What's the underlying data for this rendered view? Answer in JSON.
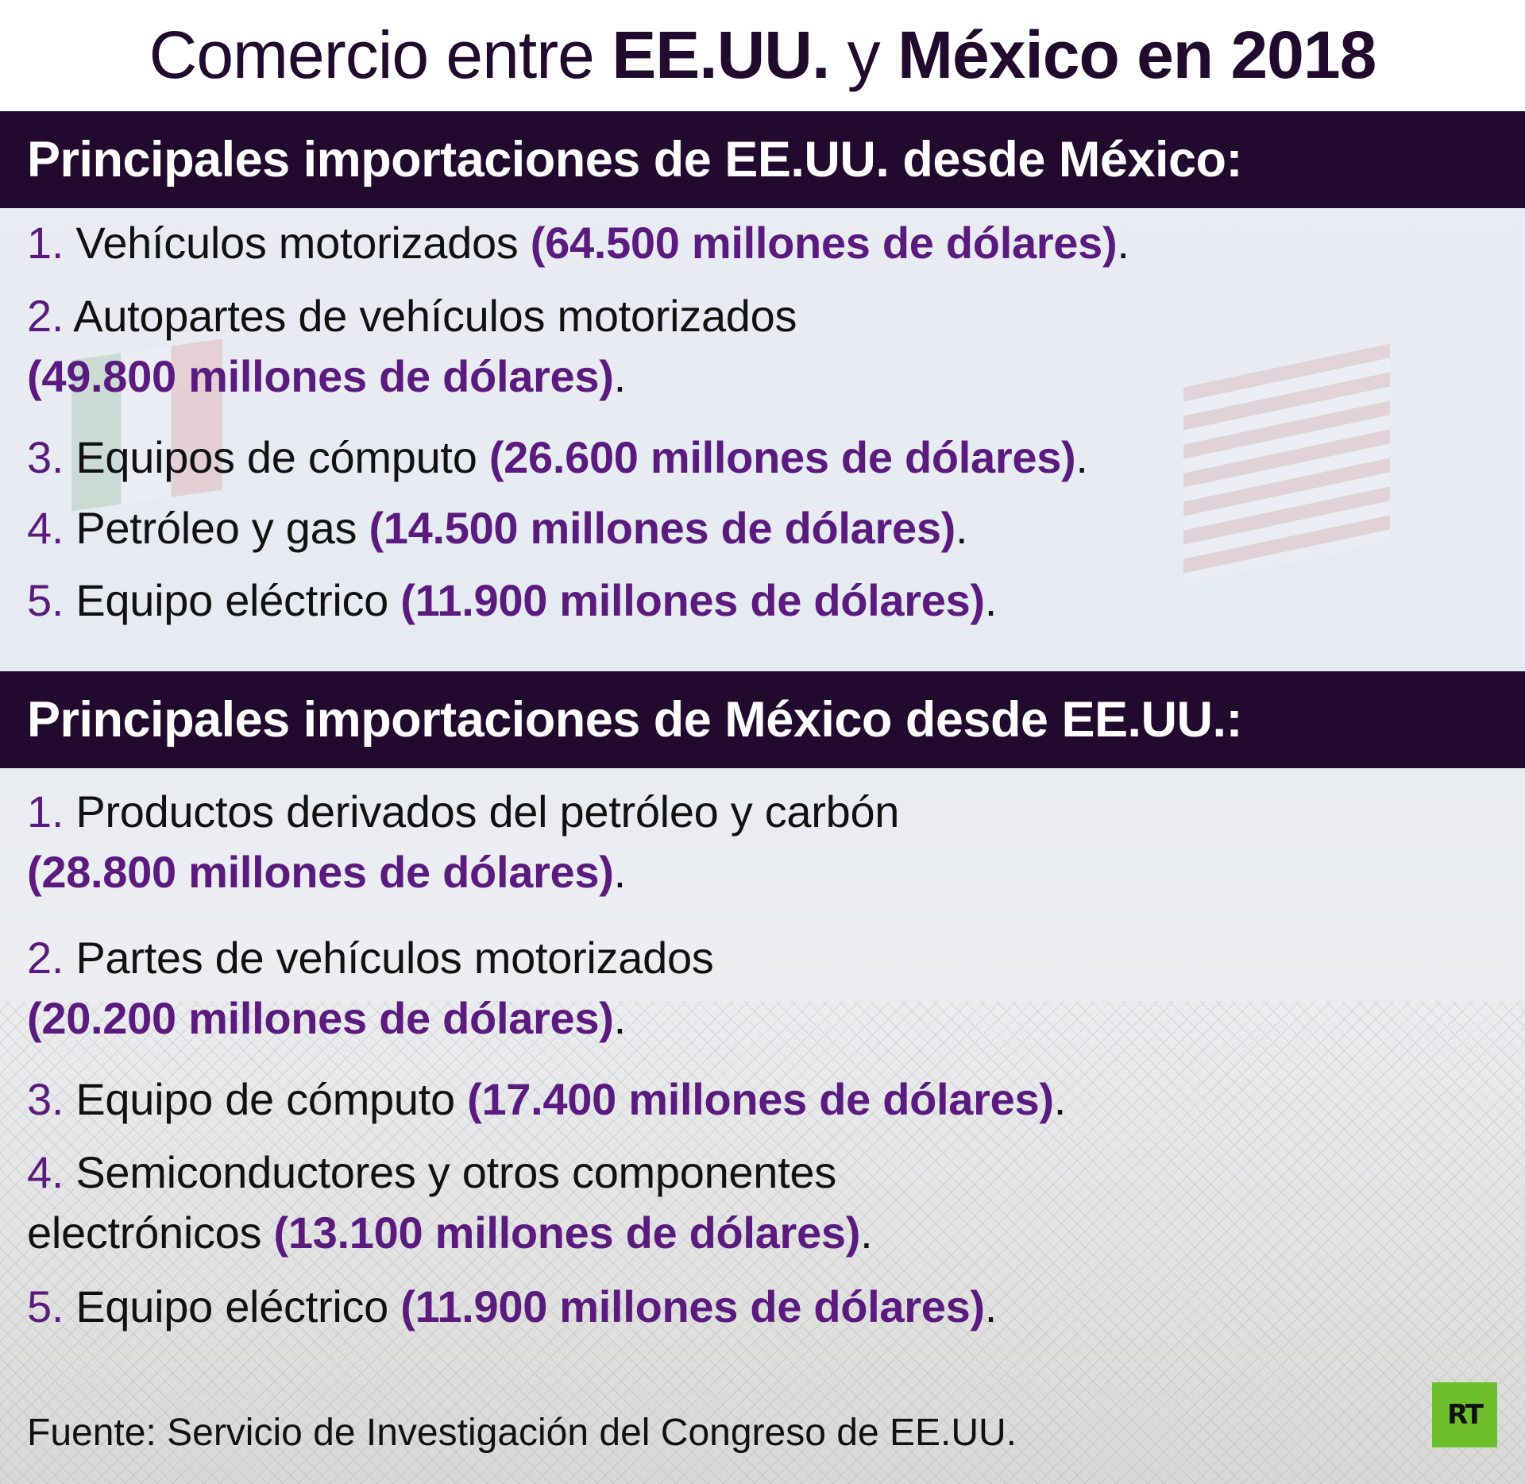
{
  "title": {
    "part1": "Comercio entre ",
    "part2": "EE.UU.",
    "part3": " y ",
    "part4": "México en 2018"
  },
  "section1": {
    "heading": "Principales importaciones de EE.UU. desde México:",
    "items": [
      {
        "num": "1.",
        "label": "Vehículos motorizados",
        "value": "(64.500 millones de dólares)",
        "end": "."
      },
      {
        "num": "2.",
        "label": "Autopartes de vehículos motorizados",
        "value": "(49.800 millones de dólares)",
        "end": "."
      },
      {
        "num": "3.",
        "label": "Equipos de cómputo",
        "value": "(26.600 millones de dólares)",
        "end": "."
      },
      {
        "num": "4.",
        "label": "Petróleo y gas",
        "value": "(14.500 millones de dólares)",
        "end": "."
      },
      {
        "num": "5.",
        "label": "Equipo eléctrico",
        "value": "(11.900 millones de dólares)",
        "end": "."
      }
    ]
  },
  "section2": {
    "heading": "Principales importaciones de México desde EE.UU.:",
    "items": [
      {
        "num": "1.",
        "label": "Productos derivados del petróleo y carbón",
        "value": "(28.800 millones de dólares)",
        "end": "."
      },
      {
        "num": "2.",
        "label": "Partes de vehículos motorizados",
        "value": "(20.200 millones de dólares)",
        "end": "."
      },
      {
        "num": "3.",
        "label": "Equipo de cómputo",
        "value": "(17.400 millones de dólares)",
        "end": "."
      },
      {
        "num": "4.",
        "label": "Semiconductores y otros componentes",
        "label2": "electrónicos",
        "value": "(13.100 millones de dólares)",
        "end": "."
      },
      {
        "num": "5.",
        "label": "Equipo eléctrico",
        "value": "(11.900 millones de dólares)",
        "end": "."
      }
    ]
  },
  "source": "Fuente: Servicio de Investigación del Congreso de EE.UU.",
  "logo": "RT",
  "colors": {
    "dark": "#220a2e",
    "accent": "#5a1a7e",
    "logo_green": "#6dbf2c"
  }
}
